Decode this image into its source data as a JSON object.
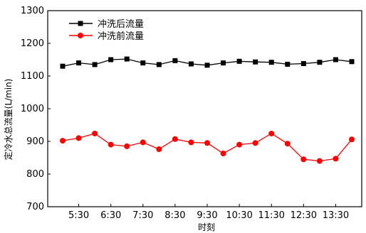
{
  "chart_data": {
    "type": "line",
    "xlabel": "时刻",
    "ylabel": "定冷水总流量(L/min)",
    "ylim": [
      700,
      1300
    ],
    "yticks": [
      700,
      800,
      900,
      1000,
      1100,
      1200,
      1300
    ],
    "xticks": [
      "5:30",
      "6:30",
      "7:30",
      "8:30",
      "9:30",
      "10:30",
      "11:30",
      "12:30",
      "13:30"
    ],
    "legend_position": "top-left",
    "grid": false,
    "series": [
      {
        "name": "冲洗后流量",
        "color": "#000000",
        "marker": "square",
        "values": [
          1130,
          1140,
          1135,
          1150,
          1152,
          1140,
          1135,
          1147,
          1137,
          1133,
          1140,
          1145,
          1143,
          1142,
          1136,
          1138,
          1142,
          1150,
          1144
        ]
      },
      {
        "name": "冲洗前流量",
        "color": "#ff0000",
        "marker": "circle",
        "values": [
          902,
          910,
          924,
          890,
          885,
          897,
          876,
          907,
          897,
          895,
          863,
          890,
          895,
          924,
          893,
          845,
          840,
          847,
          906
        ]
      }
    ]
  }
}
